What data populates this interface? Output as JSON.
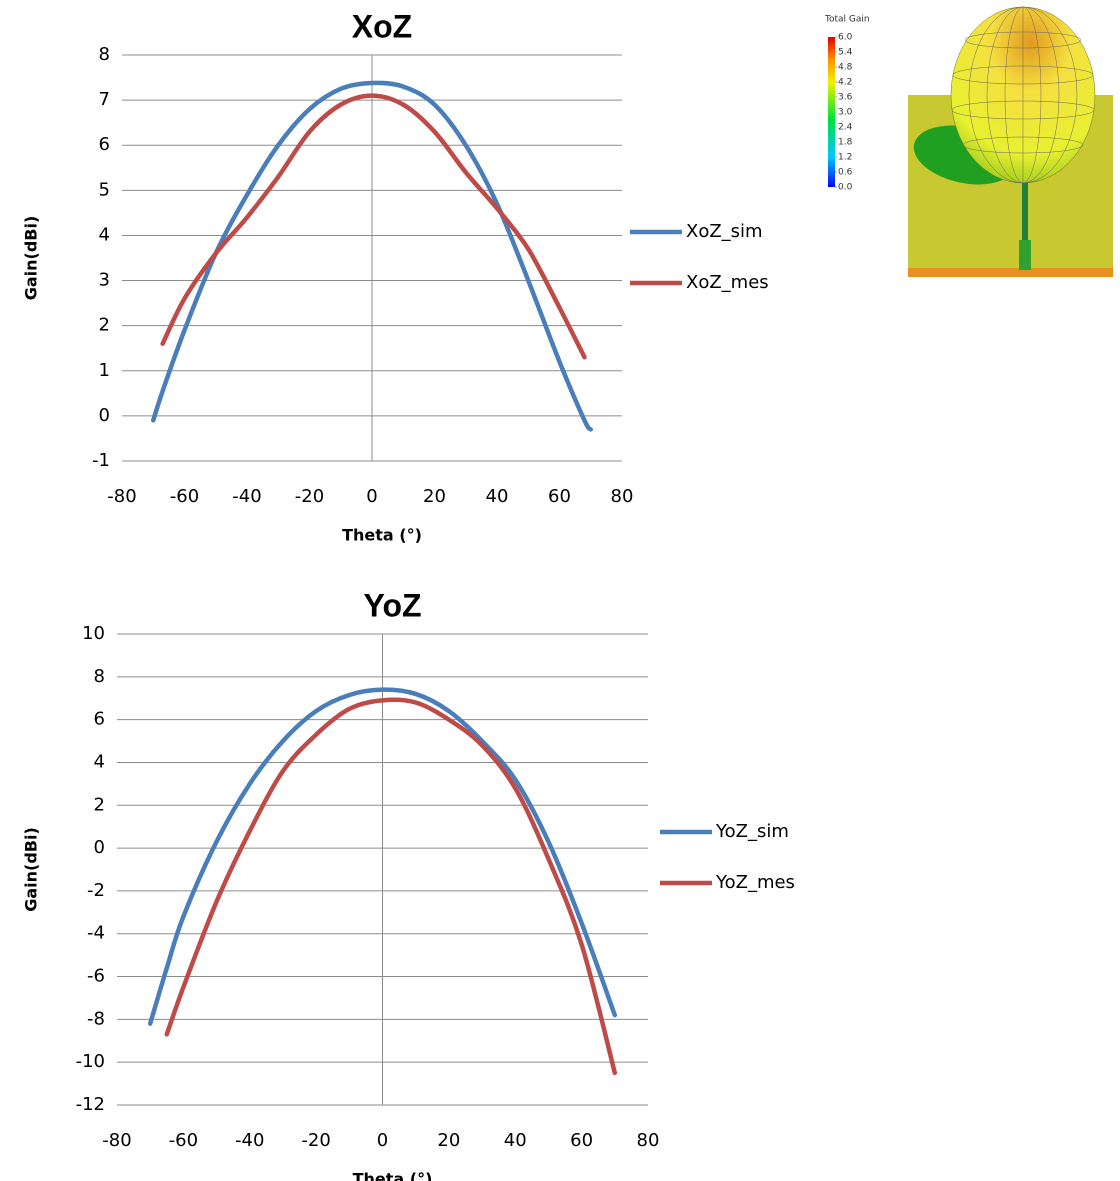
{
  "chart_data": [
    {
      "type": "line",
      "title": "XoZ",
      "x_label": "Theta (°)",
      "y_label": "Gain(dBi)",
      "x": [
        -70,
        -67,
        -60,
        -50,
        -40,
        -30,
        -20,
        -10,
        0,
        10,
        20,
        30,
        40,
        50,
        60,
        68,
        70
      ],
      "series": [
        {
          "name": "XoZ_sim",
          "color": "#4a7ebb",
          "values": [
            -0.1,
            0.55,
            1.9,
            3.6,
            4.9,
            6.0,
            6.8,
            7.25,
            7.38,
            7.3,
            6.9,
            6.0,
            4.7,
            3.0,
            1.2,
            -0.1,
            -0.3
          ]
        },
        {
          "name": "XoZ_mes",
          "color": "#be4b48",
          "values": [
            null,
            1.6,
            2.6,
            3.6,
            4.4,
            5.3,
            6.3,
            6.9,
            7.1,
            6.9,
            6.3,
            5.4,
            4.6,
            3.7,
            2.4,
            1.3,
            null
          ]
        }
      ],
      "xlim": [
        -80,
        80
      ],
      "xticks": [
        -80,
        -60,
        -40,
        -20,
        0,
        20,
        40,
        60,
        80
      ],
      "ylim": [
        -1,
        8
      ],
      "yticks": [
        -1,
        0,
        1,
        2,
        3,
        4,
        5,
        6,
        7,
        8
      ],
      "grid": true,
      "legend": "right"
    },
    {
      "type": "line",
      "title": "YoZ",
      "x_label": "Theta (°)",
      "y_label": "Gain(dBi)",
      "x": [
        -70,
        -65,
        -60,
        -50,
        -40,
        -30,
        -20,
        -10,
        0,
        10,
        20,
        30,
        40,
        50,
        60,
        70
      ],
      "series": [
        {
          "name": "YoZ_sim",
          "color": "#4a7ebb",
          "values": [
            -8.2,
            -5.6,
            -3.2,
            0.3,
            3.0,
            5.0,
            6.4,
            7.15,
            7.4,
            7.2,
            6.4,
            5.0,
            3.2,
            0.3,
            -3.5,
            -7.8
          ]
        },
        {
          "name": "YoZ_mes",
          "color": "#be4b48",
          "values": [
            null,
            -8.7,
            -6.5,
            -2.5,
            0.8,
            3.6,
            5.3,
            6.5,
            6.9,
            6.8,
            6.0,
            4.8,
            2.8,
            -0.5,
            -4.5,
            -10.5
          ]
        }
      ],
      "xlim": [
        -80,
        80
      ],
      "xticks": [
        -80,
        -60,
        -40,
        -20,
        0,
        20,
        40,
        60,
        80
      ],
      "ylim": [
        -12,
        10
      ],
      "yticks": [
        -12,
        -10,
        -8,
        -6,
        -4,
        -2,
        0,
        2,
        4,
        6,
        8,
        10
      ],
      "grid": true,
      "legend": "right"
    }
  ],
  "colorbar": {
    "title": "Total Gain",
    "lim": [
      0,
      6
    ],
    "ticks": [
      {
        "value": 6,
        "label": "6.0"
      },
      {
        "value": 5.4,
        "label": "5.4"
      },
      {
        "value": 4.8,
        "label": "4.8"
      },
      {
        "value": 4.2,
        "label": "4.2"
      },
      {
        "value": 3.6,
        "label": "3.6"
      },
      {
        "value": 3,
        "label": "3.0"
      },
      {
        "value": 2.4,
        "label": "2.4"
      },
      {
        "value": 1.8,
        "label": "1.8"
      },
      {
        "value": 1.2,
        "label": "1.2"
      },
      {
        "value": 0.6,
        "label": "0.6"
      },
      {
        "value": 0,
        "label": "0.0"
      }
    ]
  }
}
